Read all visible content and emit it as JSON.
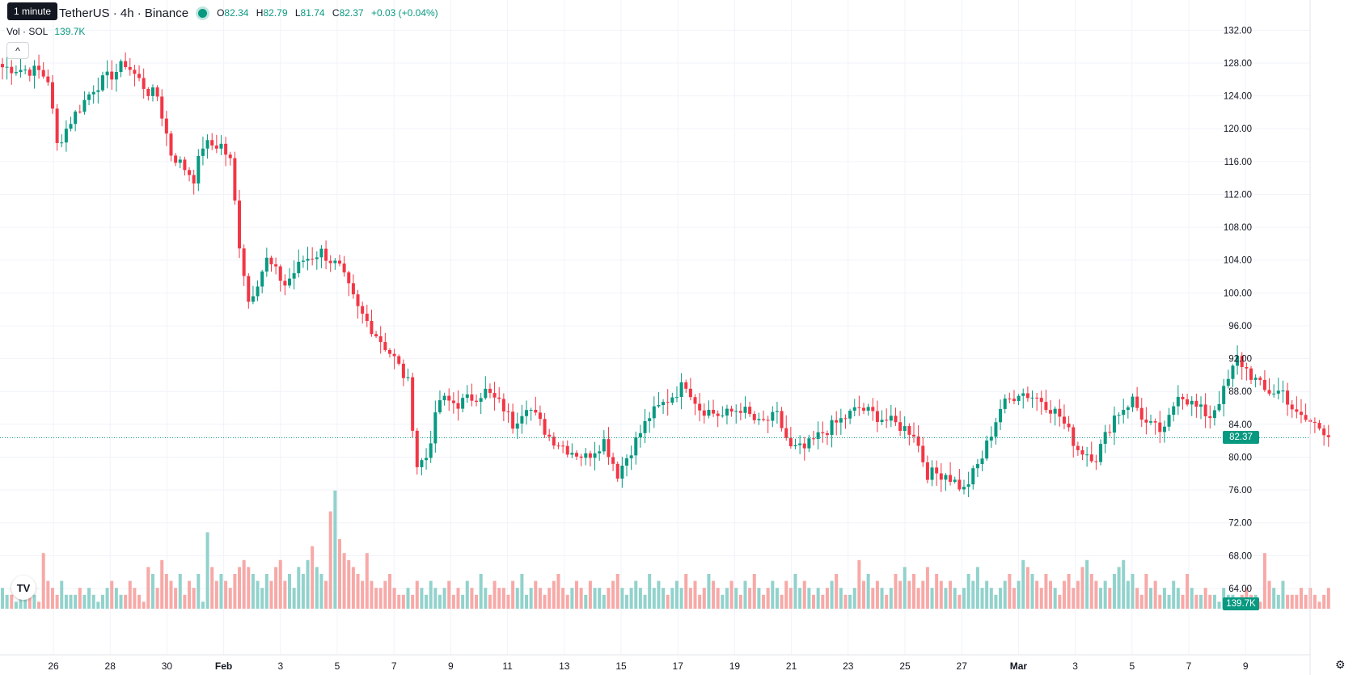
{
  "header": {
    "tooltip": "1 minute",
    "symbol": "TetherUS · 4h · Binance",
    "ohlc": {
      "o_label": "O",
      "o": "82.34",
      "h_label": "H",
      "h": "82.79",
      "l_label": "L",
      "l": "81.74",
      "c_label": "C",
      "c": "82.37",
      "change": "+0.03 (+0.04%)"
    },
    "volume": {
      "label": "Vol · SOL",
      "value": "139.7K"
    },
    "collapse_icon": "chevron-up-icon",
    "logo_icon": "tradingview-logo-icon",
    "logo_text": "TV",
    "settings_icon": "gear-icon"
  },
  "price_tag": "82.37",
  "volume_tag": "139.7K",
  "colors": {
    "up": "#089981",
    "down": "#f23645",
    "up_vol": "#92d2cc",
    "down_vol": "#f7a9a7",
    "grid": "#f0f3fa"
  },
  "chart_data": {
    "type": "candlestick",
    "ylim": [
      60,
      134
    ],
    "y_ticks": [
      "64.00",
      "68.00",
      "72.00",
      "76.00",
      "80.00",
      "84.00",
      "88.00",
      "92.00",
      "96.00",
      "100.00",
      "104.00",
      "108.00",
      "112.00",
      "116.00",
      "120.00",
      "124.00",
      "128.00",
      "132.00"
    ],
    "x_ticks": [
      "26",
      "28",
      "30",
      "Feb",
      "3",
      "5",
      "7",
      "9",
      "11",
      "13",
      "15",
      "17",
      "19",
      "21",
      "23",
      "25",
      "27",
      "Mar",
      "3",
      "5",
      "7",
      "9"
    ],
    "bars_per_day": 6,
    "current_price": 82.37,
    "anchors": [
      [
        0,
        127.5
      ],
      [
        8,
        127
      ],
      [
        10,
        126
      ],
      [
        12,
        118
      ],
      [
        15,
        121
      ],
      [
        20,
        125
      ],
      [
        25,
        127
      ],
      [
        27,
        128
      ],
      [
        32,
        124.5
      ],
      [
        34,
        124
      ],
      [
        37,
        117
      ],
      [
        42,
        114
      ],
      [
        44,
        118
      ],
      [
        48,
        118
      ],
      [
        50,
        116
      ],
      [
        52,
        106
      ],
      [
        54,
        99
      ],
      [
        58,
        104
      ],
      [
        62,
        101
      ],
      [
        66,
        104
      ],
      [
        70,
        105
      ],
      [
        74,
        103
      ],
      [
        78,
        98
      ],
      [
        82,
        95
      ],
      [
        86,
        92
      ],
      [
        89,
        89
      ],
      [
        91,
        79
      ],
      [
        93,
        80
      ],
      [
        96,
        87
      ],
      [
        100,
        86.5
      ],
      [
        106,
        88
      ],
      [
        110,
        86
      ],
      [
        112,
        84
      ],
      [
        115,
        86.5
      ],
      [
        120,
        82.5
      ],
      [
        124,
        81
      ],
      [
        128,
        80
      ],
      [
        132,
        82
      ],
      [
        135,
        78
      ],
      [
        138,
        81
      ],
      [
        142,
        85
      ],
      [
        146,
        87
      ],
      [
        150,
        89
      ],
      [
        153,
        86
      ],
      [
        158,
        85
      ],
      [
        162,
        86
      ],
      [
        166,
        84
      ],
      [
        170,
        85
      ],
      [
        173,
        81
      ],
      [
        176,
        81
      ],
      [
        180,
        83
      ],
      [
        184,
        84.5
      ],
      [
        188,
        86
      ],
      [
        192,
        85
      ],
      [
        196,
        84
      ],
      [
        200,
        83
      ],
      [
        203,
        78
      ],
      [
        207,
        78
      ],
      [
        211,
        76
      ],
      [
        215,
        80
      ],
      [
        219,
        86
      ],
      [
        223,
        88
      ],
      [
        228,
        87
      ],
      [
        232,
        85
      ],
      [
        236,
        81
      ],
      [
        240,
        80
      ],
      [
        244,
        85
      ],
      [
        248,
        87
      ],
      [
        251,
        84
      ],
      [
        255,
        83
      ],
      [
        258,
        88
      ],
      [
        262,
        86
      ],
      [
        265,
        85
      ],
      [
        268,
        88
      ],
      [
        271,
        92
      ],
      [
        274,
        90
      ],
      [
        277,
        88
      ],
      [
        281,
        88
      ],
      [
        284,
        85
      ],
      [
        288,
        84
      ],
      [
        291,
        83
      ]
    ],
    "volume_pattern": [
      3,
      2,
      2,
      1,
      2,
      3,
      2,
      2,
      1,
      8,
      4,
      3,
      2,
      4,
      2,
      2,
      2,
      3,
      2,
      3,
      2,
      1,
      2,
      3,
      4,
      3,
      2,
      2,
      4,
      3,
      2,
      1,
      6,
      5,
      3,
      7,
      5,
      4,
      3,
      5,
      2,
      4,
      3,
      5,
      1,
      11,
      6,
      4,
      5,
      4,
      3,
      5,
      6,
      7,
      6,
      5,
      4,
      3,
      5,
      4,
      6,
      7,
      4,
      5,
      3,
      6,
      5,
      7,
      9,
      6,
      5,
      4,
      14,
      17,
      10,
      8,
      7,
      6,
      5,
      4,
      8,
      4,
      3,
      3,
      4,
      5,
      3,
      2,
      2,
      3,
      2,
      4,
      3,
      2,
      4,
      3,
      2,
      3,
      4,
      2,
      3,
      2,
      4,
      3,
      2,
      5,
      3,
      2,
      4,
      3,
      3,
      2,
      4,
      3,
      5,
      2,
      3,
      4,
      3,
      2,
      3,
      4,
      5,
      3,
      2,
      3,
      4,
      3,
      2,
      4,
      3,
      3,
      2,
      3,
      4,
      5,
      3,
      2,
      3,
      4,
      3,
      2,
      5,
      3,
      4,
      3,
      2,
      3,
      4,
      3,
      5,
      3,
      4,
      2,
      3,
      5,
      4,
      3,
      2,
      3,
      4,
      3,
      2,
      4,
      3,
      5,
      3,
      2,
      3,
      4,
      3,
      2,
      4,
      3,
      5,
      3,
      4,
      3,
      2,
      3,
      2,
      3,
      4,
      5,
      3,
      2,
      2,
      3,
      7,
      4,
      5,
      3,
      4,
      3,
      2,
      3,
      5,
      4,
      6,
      4,
      5,
      3,
      4,
      6,
      3,
      5,
      4,
      3,
      4,
      3,
      2,
      3,
      5,
      4,
      6,
      3,
      4,
      3,
      2,
      3,
      4,
      5,
      3,
      4,
      7,
      6,
      5,
      4,
      3,
      5,
      4,
      3,
      2,
      4,
      5,
      3,
      4,
      6,
      7,
      5,
      4,
      3,
      4,
      3,
      5,
      6,
      7,
      4,
      5,
      3,
      2,
      5,
      3,
      4,
      2,
      3,
      2,
      4,
      3,
      2,
      5,
      3,
      2,
      2,
      3,
      2,
      2,
      1
    ]
  }
}
